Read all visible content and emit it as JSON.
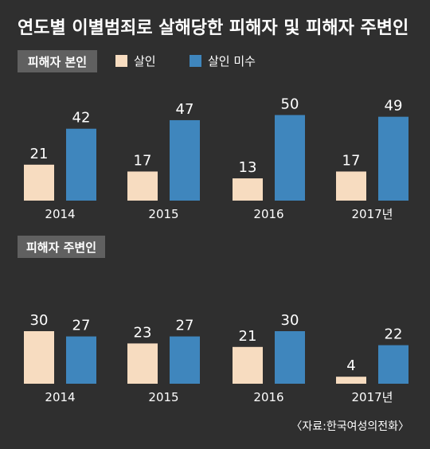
{
  "title": "연도별 이별범죄로 살해당한 피해자 및 피해자 주변인",
  "legend": [
    {
      "name": "살인",
      "color": "#f7dcc0"
    },
    {
      "name": "살인 미수",
      "color": "#3f86bd"
    }
  ],
  "source": "〈자료:한국여성의전화〉",
  "chart_data": [
    {
      "type": "bar",
      "title": "피해자 본인",
      "categories": [
        "2014",
        "2015",
        "2016",
        "2017년"
      ],
      "series": [
        {
          "name": "살인",
          "values": [
            21,
            17,
            13,
            17
          ]
        },
        {
          "name": "살인 미수",
          "values": [
            42,
            47,
            50,
            49
          ]
        }
      ],
      "legend_position": "top"
    },
    {
      "type": "bar",
      "title": "피해자 주변인",
      "categories": [
        "2014",
        "2015",
        "2016",
        "2017년"
      ],
      "series": [
        {
          "name": "살인",
          "values": [
            30,
            23,
            21,
            4
          ]
        },
        {
          "name": "살인 미수",
          "values": [
            27,
            27,
            30,
            22
          ]
        }
      ]
    }
  ]
}
